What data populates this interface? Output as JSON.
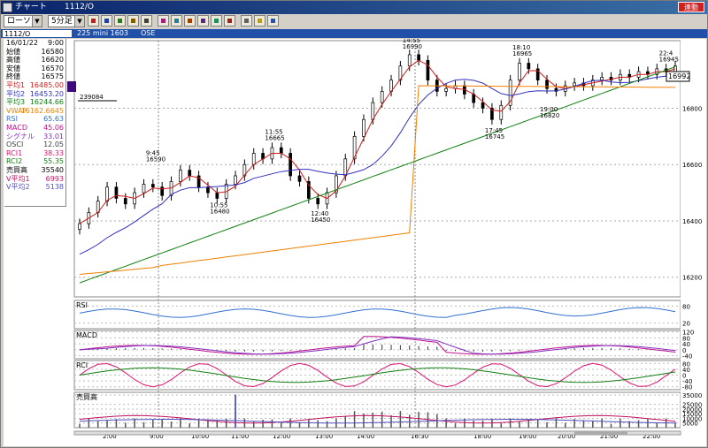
{
  "window": {
    "title_app": "チャート",
    "title_symbol": "1112/O",
    "badge": "連動"
  },
  "toolbar": {
    "chart_type": "ローソク",
    "timeframe": "5分足",
    "buttons": [
      "candles-icon",
      "bars-icon",
      "line-icon",
      "grid-icon",
      "print-icon",
      "compare-icon",
      "trend-icon",
      "fib-icon",
      "crosshair-icon",
      "color-icon",
      "pen-icon",
      "eraser-icon",
      "zoom-icon",
      "settings-icon"
    ]
  },
  "infobar": {
    "symbol": "1112/O",
    "name": "225 mini 1603",
    "exchange": "OSE"
  },
  "legend": [
    {
      "label": "16/01/22",
      "value": "9:00",
      "color": "#000000"
    },
    {
      "label": "始値",
      "value": "16580",
      "color": "#000000"
    },
    {
      "label": "高値",
      "value": "16620",
      "color": "#000000"
    },
    {
      "label": "安値",
      "value": "16570",
      "color": "#000000"
    },
    {
      "label": "終値",
      "value": "16575",
      "color": "#000000"
    },
    {
      "label": "平均1",
      "value": "16485.00",
      "color": "#d01818"
    },
    {
      "label": "平均2",
      "value": "16453.20",
      "color": "#3030c0"
    },
    {
      "label": "平均3",
      "value": "16244.66",
      "color": "#108010"
    },
    {
      "label": "VWAP",
      "value": "16162.6645",
      "color": "#f08000"
    },
    {
      "label": "RSI",
      "value": "65.63",
      "color": "#3070d0"
    },
    {
      "label": "MACD",
      "value": "45.06",
      "color": "#c01090"
    },
    {
      "label": "シグナル",
      "value": "33.01",
      "color": "#8030c0"
    },
    {
      "label": "OSCI",
      "value": "12.05",
      "color": "#404040"
    },
    {
      "label": "RCI1",
      "value": "38.33",
      "color": "#e01070"
    },
    {
      "label": "RCI2",
      "value": "55.35",
      "color": "#108010"
    },
    {
      "label": "売買高",
      "value": "35540",
      "color": "#000000"
    },
    {
      "label": "V平均1",
      "value": "6993",
      "color": "#c01060"
    },
    {
      "label": "V平均2",
      "value": "5138",
      "color": "#5050c0"
    }
  ],
  "marker_label": "239084",
  "current_price_label": "16992",
  "panels": {
    "rsi": "RSI",
    "macd": "MACD",
    "rci": "RCI",
    "volume": "売買高"
  },
  "colors": {
    "candle_up": "#ffffff",
    "candle_down": "#000000",
    "ma1": "#d01818",
    "ma2": "#3030c0",
    "ma3": "#108010",
    "vwap": "#f08000",
    "rsi": "#3070d0",
    "macd": "#c01090",
    "signal": "#8030c0",
    "rci1": "#e01070",
    "rci2": "#108010",
    "vol": "#555555",
    "vma1": "#c01060",
    "vma2": "#5050c0"
  },
  "chart_data": [
    {
      "type": "candlestick",
      "title": "",
      "ylim": [
        16130,
        17040
      ],
      "yticks": [
        16200,
        16400,
        16600,
        16800
      ],
      "x_labels": [
        "2:00",
        "9:00",
        "10:00",
        "11:00",
        "12:00",
        "13:00",
        "14:00",
        "16:30",
        "18:00",
        "19:00",
        "20:00",
        "21:00",
        "22:00"
      ],
      "vertical_separators": [
        "9:00",
        "16:30"
      ],
      "annotations": [
        {
          "time": "9:45",
          "price": "16590",
          "text": "9:45\n16590"
        },
        {
          "time": "10:55",
          "price": "16480",
          "text": "10:55\n16480"
        },
        {
          "time": "11:55",
          "price": "16665",
          "text": "11:55\n16665"
        },
        {
          "time": "12:40",
          "price": "16450",
          "text": "12:40\n16450"
        },
        {
          "time": "14:55",
          "price": "16990",
          "text": "14:55\n16990"
        },
        {
          "time": "17:45",
          "price": "16745",
          "text": "17:45\n16745"
        },
        {
          "time": "18:10",
          "price": "16965",
          "text": "18:10\n16965"
        },
        {
          "time": "19:00",
          "price": "16820",
          "text": "19:00\n16820"
        },
        {
          "time": "22:4",
          "price": "16945",
          "text": "22:4\n16945"
        }
      ],
      "price_points": [
        16390,
        16430,
        16470,
        16520,
        16480,
        16460,
        16500,
        16530,
        16520,
        16490,
        16540,
        16580,
        16560,
        16520,
        16500,
        16480,
        16530,
        16560,
        16600,
        16640,
        16620,
        16660,
        16640,
        16560,
        16540,
        16480,
        16460,
        16500,
        16560,
        16620,
        16700,
        16760,
        16820,
        16860,
        16900,
        16950,
        16990,
        16970,
        16900,
        16860,
        16870,
        16880,
        16850,
        16820,
        16800,
        16760,
        16810,
        16900,
        16960,
        16940,
        16900,
        16870,
        16860,
        16880,
        16890,
        16880,
        16900,
        16910,
        16900,
        16920,
        16910,
        16930,
        16920,
        16940,
        16930,
        16950
      ]
    },
    {
      "type": "line",
      "name": "RSI",
      "ylim": [
        0,
        100
      ],
      "yticks": [
        20,
        80
      ]
    },
    {
      "type": "line",
      "name": "MACD",
      "ylim": [
        -60,
        130
      ],
      "yticks": [
        -40,
        0,
        40,
        80,
        120
      ]
    },
    {
      "type": "line",
      "name": "RCI",
      "ylim": [
        -100,
        100
      ],
      "yticks": [
        -80,
        -40,
        0,
        40,
        80
      ]
    },
    {
      "type": "bar",
      "name": "売買高",
      "ylim": [
        0,
        38000
      ],
      "yticks": [
        5000,
        10000,
        15000,
        20000,
        25000,
        35000
      ]
    }
  ]
}
